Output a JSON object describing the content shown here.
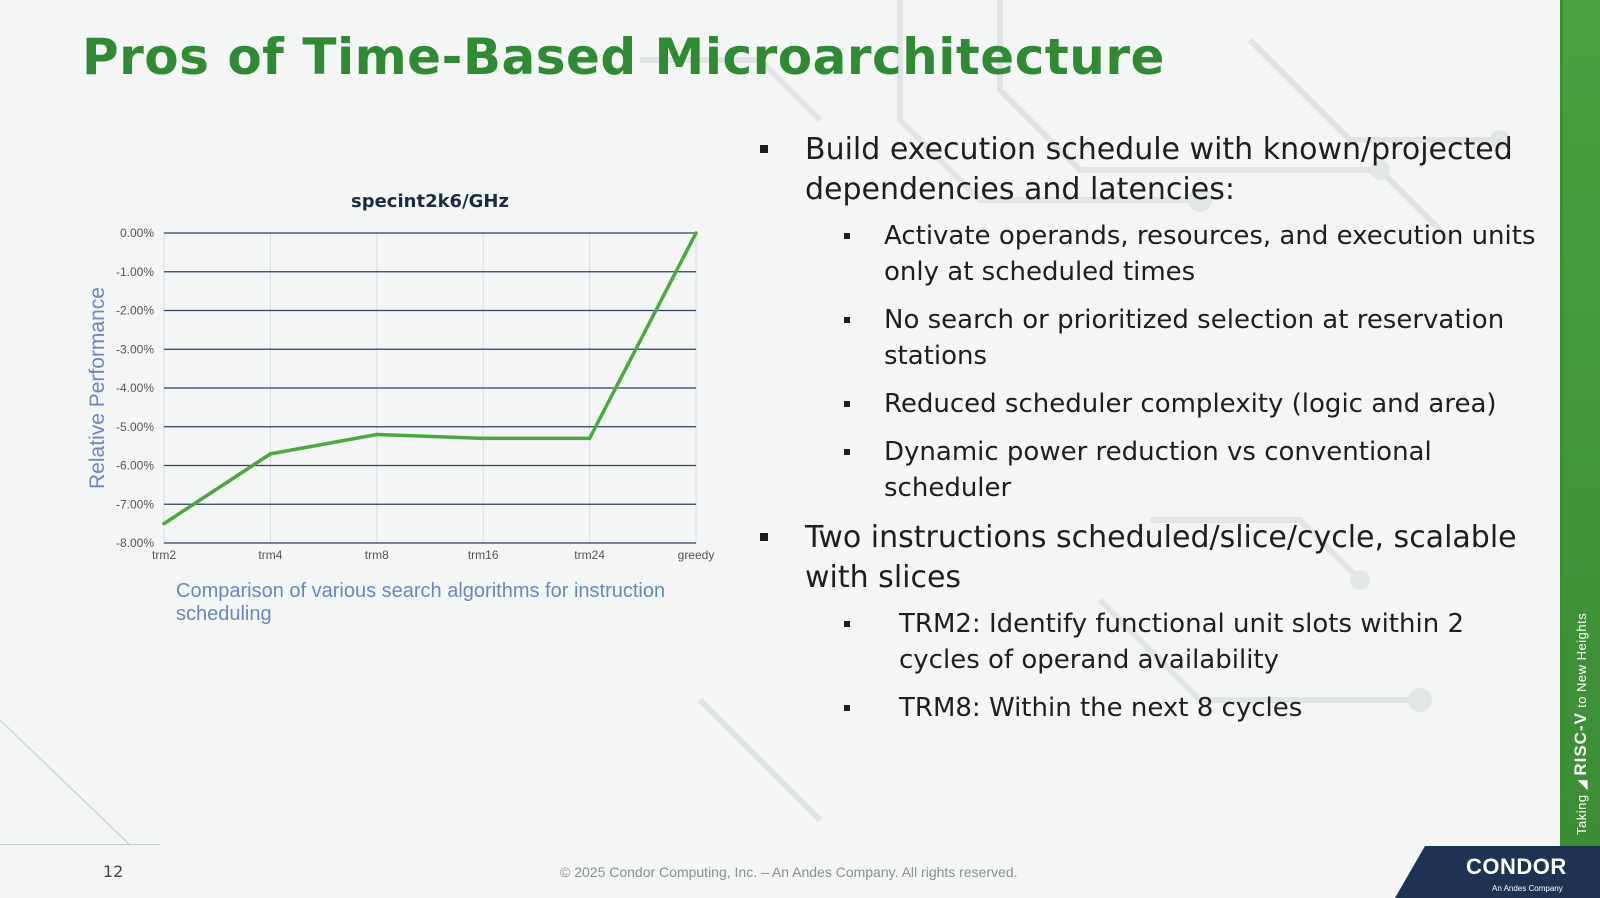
{
  "slide": {
    "title": "Pros of Time-Based Microarchitecture",
    "page_number": "12",
    "copyright": "© 2025 Condor Computing, Inc. – An Andes Company. All rights reserved.",
    "tagline_prefix": "Taking",
    "tagline_brand": "RISC-V",
    "tagline_suffix": "to New Heights",
    "logo_text": "CONDOR",
    "logo_subtext": "An Andes Company",
    "accent_color": "#2f8a33",
    "line_color": "#4aa83f"
  },
  "bullets": {
    "b1": "Build execution schedule with known/projected dependencies and latencies:",
    "b1_subs": [
      "Activate operands, resources, and execution units only at scheduled times",
      "No search or prioritized selection at reservation stations",
      "Reduced scheduler complexity (logic and area)",
      "Dynamic power reduction vs conventional scheduler"
    ],
    "b2": "Two instructions scheduled/slice/cycle, scalable with slices",
    "b2_subs": [
      "TRM2: Identify functional unit slots within 2 cycles of operand availability",
      "TRM8: Within the next 8 cycles"
    ]
  },
  "chart_data": {
    "type": "line",
    "title": "specint2k6/GHz",
    "xlabel": "",
    "ylabel": "Relative Performance",
    "caption": "Comparison of various search algorithms for instruction scheduling",
    "categories": [
      "trm2",
      "trm4",
      "trm8",
      "trm16",
      "trm24",
      "greedy"
    ],
    "series": [
      {
        "values": [
          -7.5,
          -5.7,
          -5.2,
          -5.3,
          -5.3,
          0.0
        ]
      }
    ],
    "ylim": [
      -8.0,
      0.0
    ],
    "yticks": [
      "0.00%",
      "-1.00%",
      "-2.00%",
      "-3.00%",
      "-4.00%",
      "-5.00%",
      "-6.00%",
      "-7.00%",
      "-8.00%"
    ],
    "ytick_values": [
      0,
      -1,
      -2,
      -3,
      -4,
      -5,
      -6,
      -7,
      -8
    ],
    "grid": true,
    "legend": "none"
  }
}
